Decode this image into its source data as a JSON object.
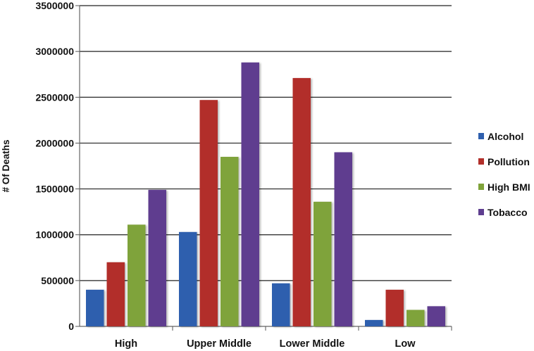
{
  "chart_data": {
    "type": "bar",
    "title": "",
    "xlabel": "",
    "ylabel": "# Of Deaths",
    "categories": [
      "High",
      "Upper Middle",
      "Lower Middle",
      "Low"
    ],
    "series": [
      {
        "name": "Alcohol",
        "color": "#2F5FAE",
        "values": [
          400000,
          1030000,
          470000,
          70000
        ]
      },
      {
        "name": "Pollution",
        "color": "#B22F2A",
        "values": [
          700000,
          2470000,
          2710000,
          400000
        ]
      },
      {
        "name": "High BMI",
        "color": "#7FA33A",
        "values": [
          1110000,
          1850000,
          1360000,
          180000
        ]
      },
      {
        "name": "Tobacco",
        "color": "#5E3E8F",
        "values": [
          1490000,
          2880000,
          1900000,
          220000
        ]
      }
    ],
    "yticks": [
      "0",
      "500000",
      "1000000",
      "1500000",
      "2000000",
      "2500000",
      "3000000",
      "3500000"
    ],
    "ylim": [
      0,
      3500000
    ],
    "grid": true,
    "legend": "right"
  }
}
